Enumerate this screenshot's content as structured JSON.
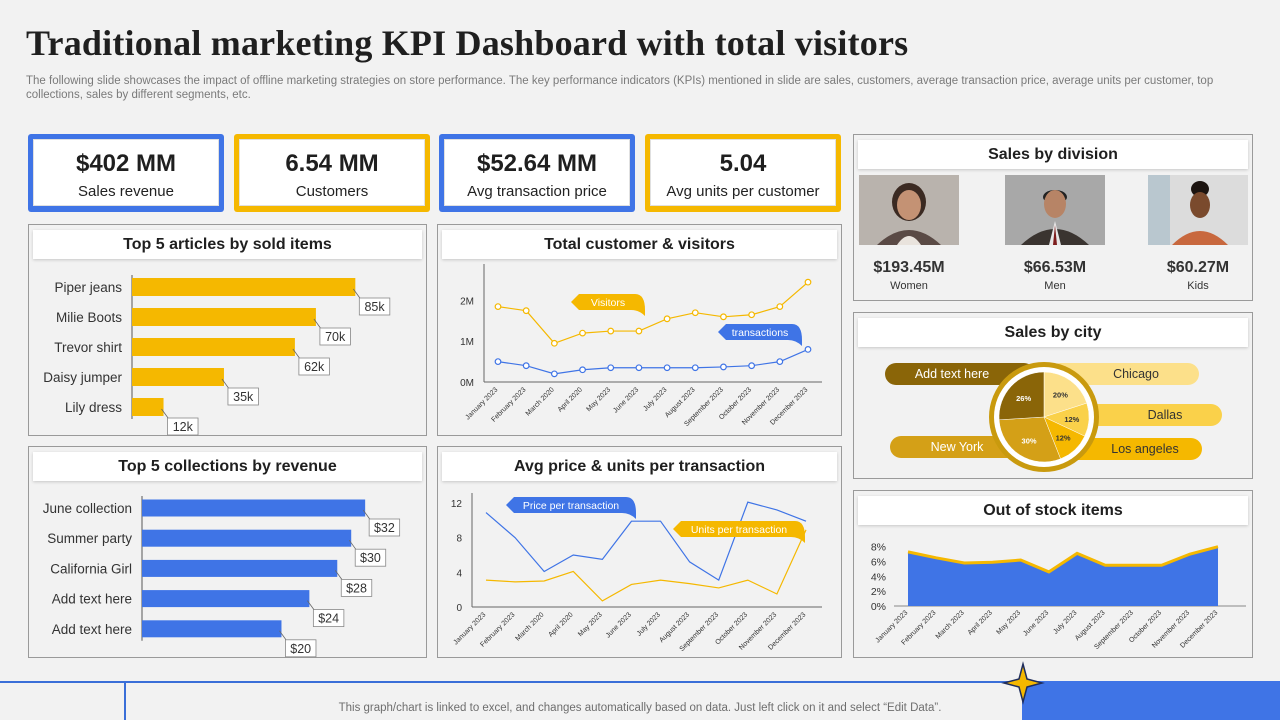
{
  "header": {
    "title": "Traditional marketing KPI Dashboard with total visitors",
    "subtitle": "The following slide showcases the impact of offline marketing strategies on store performance. The key performance indicators (KPIs) mentioned in slide are sales, customers, average transaction price, average units per customer, top collections, sales by different segments, etc."
  },
  "kpis": [
    {
      "value": "$402 MM",
      "label": "Sales revenue",
      "color": "#3f74e6"
    },
    {
      "value": "6.54 MM",
      "label": "Customers",
      "color": "#f5b800"
    },
    {
      "value": "$52.64 MM",
      "label": "Avg transaction price",
      "color": "#3f74e6"
    },
    {
      "value": "5.04",
      "label": "Avg units per customer",
      "color": "#f5b800"
    }
  ],
  "panels": {
    "articles": "Top 5 articles by sold items",
    "visitors": "Total customer & visitors",
    "collections": "Top 5 collections by revenue",
    "avg_price": "Avg price & units per transaction",
    "division": "Sales by division",
    "city": "Sales by city",
    "stock": "Out of stock items"
  },
  "division": [
    {
      "value": "$193.45M",
      "label": "Women"
    },
    {
      "value": "$66.53M",
      "label": "Men"
    },
    {
      "value": "$60.27M",
      "label": "Kids"
    }
  ],
  "footer": {
    "text": "This graph/chart is linked to excel, and changes automatically based on data. Just left click on it and select “Edit Data”."
  },
  "colors": {
    "yellow": "#f5b800",
    "blue": "#3f74e6"
  },
  "chart_data": [
    {
      "id": "articles",
      "type": "bar",
      "orientation": "horizontal",
      "title": "Top 5 articles by sold items",
      "categories": [
        "Piper jeans",
        "Milie Boots",
        "Trevor shirt",
        "Daisy jumper",
        "Lily dress"
      ],
      "values": [
        85,
        70,
        62,
        35,
        12
      ],
      "labels": [
        "85k",
        "70k",
        "62k",
        "35k",
        "12k"
      ],
      "xlim": [
        0,
        110
      ],
      "color": "#f5b800"
    },
    {
      "id": "visitors",
      "type": "line",
      "title": "Total customer & visitors",
      "x": [
        "January 2023",
        "February 2023",
        "March 2020",
        "April 2020",
        "May 2023",
        "June 2023",
        "July 2023",
        "August 2023",
        "September 2023",
        "October 2023",
        "November 2023",
        "December 2023"
      ],
      "series": [
        {
          "name": "Visitors",
          "values": [
            1.85,
            1.75,
            0.95,
            1.2,
            1.25,
            1.25,
            1.55,
            1.7,
            1.6,
            1.65,
            1.85,
            2.45
          ],
          "color": "#f5b800"
        },
        {
          "name": "transactions",
          "values": [
            0.5,
            0.4,
            0.2,
            0.3,
            0.35,
            0.35,
            0.35,
            0.35,
            0.37,
            0.4,
            0.5,
            0.8
          ],
          "color": "#3f74e6"
        }
      ],
      "yticks": [
        "0M",
        "1M",
        "2M"
      ],
      "ylim": [
        0,
        2.65
      ]
    },
    {
      "id": "collections",
      "type": "bar",
      "orientation": "horizontal",
      "title": "Top 5 collections by revenue",
      "categories": [
        "June collection",
        "Summer party",
        "California Girl",
        "Add text here",
        "Add text here"
      ],
      "values": [
        32,
        30,
        28,
        24,
        20
      ],
      "labels": [
        "$32",
        "$30",
        "$28",
        "$24",
        "$20"
      ],
      "xlim": [
        0,
        38
      ],
      "color": "#3f74e6"
    },
    {
      "id": "avg_price",
      "type": "line",
      "title": "Avg price & units per transaction",
      "x": [
        "January 2023",
        "February 2023",
        "March 2020",
        "April 2020",
        "May 2023",
        "June 2023",
        "July 2023",
        "August 2023",
        "September 2023",
        "October 2023",
        "November 2023",
        "December 2023"
      ],
      "series": [
        {
          "name": "Price per transaction",
          "values": [
            10.9,
            8,
            4.1,
            6,
            5.5,
            9.9,
            9.9,
            5.2,
            3.1,
            12.1,
            11.2,
            9.9
          ],
          "color": "#3f74e6"
        },
        {
          "name": "Units per transaction",
          "values": [
            3.1,
            2.9,
            3,
            4.1,
            0.7,
            2.6,
            3.1,
            2.7,
            2.2,
            3.1,
            1.5,
            8.9
          ],
          "color": "#f5b800"
        }
      ],
      "yticks": [
        "0",
        "4",
        "8",
        "12"
      ],
      "ylim": [
        0,
        12
      ]
    },
    {
      "id": "city",
      "type": "pie",
      "title": "Sales by city",
      "labels": [
        "Chicago",
        "Dallas",
        "Los angeles",
        "New York",
        "Add text here"
      ],
      "values": [
        20,
        12,
        12,
        30,
        26
      ],
      "value_labels": [
        "20%",
        "12%",
        "12%",
        "30%",
        "26%"
      ],
      "colors": [
        "#fce08a",
        "#fad14a",
        "#f5b800",
        "#d4a017",
        "#8a6508"
      ]
    },
    {
      "id": "stock",
      "type": "area",
      "title": "Out of stock items",
      "x": [
        "January 2023",
        "February 2023",
        "March 2023",
        "April 2023",
        "May 2023",
        "June 2023",
        "July 2023",
        "August 2023",
        "September 2023",
        "October 2023",
        "November 2023",
        "December 2023"
      ],
      "values": [
        7.3,
        6.5,
        5.8,
        5.9,
        6.2,
        4.6,
        7.1,
        5.5,
        5.5,
        5.5,
        7.0,
        8.0
      ],
      "yticks": [
        "0%",
        "2%",
        "4%",
        "6%",
        "8%"
      ],
      "ylim": [
        0,
        8.5
      ],
      "color": "#3f74e6",
      "line_color": "#f5b800"
    }
  ]
}
